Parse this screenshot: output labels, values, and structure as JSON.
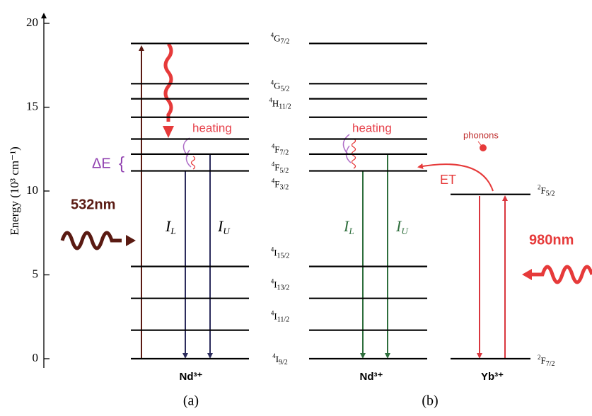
{
  "axis": {
    "label": "Energy (10³ cm⁻¹)",
    "ylim": [
      0,
      20
    ],
    "yticks": [
      0,
      5,
      10,
      15,
      20
    ]
  },
  "nd_levels": [
    {
      "energy": 18.8,
      "term": {
        "mult": "4",
        "letter": "G",
        "j": "7/2"
      }
    },
    {
      "energy": 16.4,
      "term": {
        "mult": "4",
        "letter": "G",
        "j": "5/2"
      }
    },
    {
      "energy": 15.5,
      "term": {
        "mult": "4",
        "letter": "H",
        "j": "11/2"
      }
    },
    {
      "energy": 14.4,
      "term": null
    },
    {
      "energy": 13.1,
      "term": {
        "mult": "4",
        "letter": "F",
        "j": "7/2"
      }
    },
    {
      "energy": 12.2,
      "term": {
        "mult": "4",
        "letter": "F",
        "j": "5/2"
      }
    },
    {
      "energy": 11.2,
      "term": {
        "mult": "4",
        "letter": "F",
        "j": "3/2"
      }
    },
    {
      "energy": 5.5,
      "term": {
        "mult": "4",
        "letter": "I",
        "j": "15/2"
      }
    },
    {
      "energy": 3.6,
      "term": {
        "mult": "4",
        "letter": "I",
        "j": "13/2"
      }
    },
    {
      "energy": 1.7,
      "term": {
        "mult": "4",
        "letter": "I",
        "j": "11/2"
      }
    },
    {
      "energy": 0,
      "term": {
        "mult": "4",
        "letter": "I",
        "j": "9/2"
      }
    }
  ],
  "yb_levels": [
    {
      "energy": 9.8,
      "term": {
        "mult": "2",
        "letter": "F",
        "j": "5/2"
      }
    },
    {
      "energy": 0,
      "term": {
        "mult": "2",
        "letter": "F",
        "j": "7/2"
      }
    }
  ],
  "panel_a": {
    "pump": "532nm",
    "heating": "heating",
    "delta": "ΔE",
    "il": "I",
    "il_sub": "L",
    "iu": "I",
    "iu_sub": "U",
    "ion": "Nd³⁺",
    "caption": "(a)"
  },
  "panel_b": {
    "heating": "heating",
    "il": "I",
    "il_sub": "L",
    "iu": "I",
    "iu_sub": "U",
    "ion": "Nd³⁺",
    "ion2": "Yb³⁺",
    "phonons": "phonons",
    "et": "ET",
    "pump": "980nm",
    "caption": "(b)"
  }
}
